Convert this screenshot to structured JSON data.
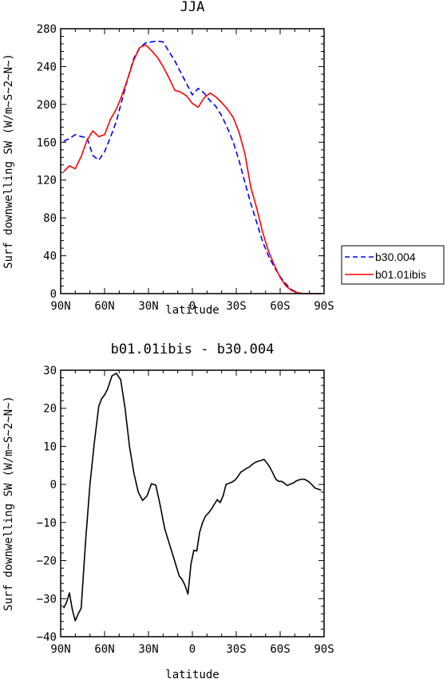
{
  "chart_data": [
    {
      "type": "line",
      "title": "JJA",
      "xlabel": "latitude",
      "ylabel": "Surf downwelling SW (W/m~S~2~N~)",
      "x_reversed": true,
      "xlim": [
        90,
        -90
      ],
      "ylim": [
        0,
        280
      ],
      "x_ticks": [
        90,
        60,
        30,
        0,
        -30,
        -60,
        -90
      ],
      "x_tick_labels": [
        "90N",
        "60N",
        "30N",
        "0",
        "30S",
        "60S",
        "90S"
      ],
      "y_ticks": [
        0,
        40,
        80,
        120,
        160,
        200,
        240,
        280
      ],
      "y_tick_labels": [
        "0",
        "40",
        "80",
        "120",
        "160",
        "200",
        "240",
        "280"
      ],
      "legend": {
        "placement": "right",
        "entries": [
          "b30.004",
          "b01.01ibis"
        ]
      },
      "series": [
        {
          "name": "b30.004",
          "color": "#0000ff",
          "dash": "dashed",
          "x": [
            88,
            84,
            80,
            76,
            72,
            68,
            64,
            60,
            56,
            52,
            48,
            44,
            40,
            36,
            32,
            28,
            24,
            20,
            16,
            12,
            8,
            4,
            0,
            -4,
            -8,
            -12,
            -16,
            -20,
            -24,
            -28,
            -32,
            -36,
            -40,
            -44,
            -48,
            -52,
            -56,
            -60,
            -64,
            -68,
            -72,
            -76,
            -80,
            -84,
            -88
          ],
          "y": [
            161,
            164,
            168,
            166,
            165,
            146,
            141,
            150,
            165,
            182,
            205,
            228,
            249,
            260,
            265,
            266,
            267,
            266,
            256,
            246,
            234,
            222,
            210,
            217,
            212,
            204,
            198,
            188,
            175,
            160,
            140,
            117,
            95,
            75,
            55,
            40,
            28,
            18,
            10,
            4,
            1,
            0,
            0,
            0,
            0
          ]
        },
        {
          "name": "b01.01ibis",
          "color": "#ff0000",
          "dash": "solid",
          "x": [
            88,
            84,
            80,
            76,
            72,
            68,
            64,
            60,
            56,
            52,
            48,
            44,
            40,
            36,
            32,
            28,
            24,
            20,
            16,
            12,
            8,
            4,
            0,
            -4,
            -8,
            -12,
            -16,
            -20,
            -24,
            -28,
            -32,
            -36,
            -40,
            -44,
            -48,
            -52,
            -56,
            -60,
            -64,
            -68,
            -72,
            -76,
            -80,
            -84,
            -88
          ],
          "y": [
            129,
            135,
            132,
            145,
            162,
            172,
            166,
            168,
            184,
            195,
            210,
            228,
            247,
            260,
            263,
            257,
            250,
            240,
            228,
            215,
            213,
            209,
            201,
            197,
            207,
            212,
            208,
            202,
            195,
            186,
            170,
            147,
            112,
            90,
            65,
            45,
            30,
            17,
            8,
            3,
            1,
            0,
            0,
            0,
            0
          ]
        }
      ]
    },
    {
      "type": "line",
      "title": "b01.01ibis - b30.004",
      "xlabel": "latitude",
      "ylabel": "Surf downwelling SW (W/m~S~2~N~)",
      "x_reversed": true,
      "xlim": [
        90,
        -90
      ],
      "ylim": [
        -40,
        30
      ],
      "x_ticks": [
        90,
        60,
        30,
        0,
        -30,
        -60,
        -90
      ],
      "x_tick_labels": [
        "90N",
        "60N",
        "30N",
        "0",
        "30S",
        "60S",
        "90S"
      ],
      "y_ticks": [
        -40,
        -30,
        -20,
        -10,
        0,
        10,
        20,
        30
      ],
      "y_tick_labels": [
        "−40",
        "−30",
        "−20",
        "−10",
        "0",
        "10",
        "20",
        "30"
      ],
      "series": [
        {
          "color": "#000000",
          "dash": "solid",
          "x": [
            88,
            86,
            84,
            82,
            80,
            78,
            76,
            73,
            70,
            67,
            64,
            62,
            60,
            58,
            55,
            52,
            49,
            46,
            43,
            40,
            37,
            34,
            31,
            28,
            25,
            22,
            19,
            17,
            15,
            13,
            11,
            9,
            7,
            5,
            3,
            1,
            -1,
            -3,
            -5,
            -7,
            -9,
            -11,
            -13,
            -15,
            -17,
            -19,
            -21,
            -23,
            -25,
            -27,
            -29,
            -31,
            -33,
            -35,
            -37,
            -39,
            -41,
            -43,
            -45,
            -47,
            -49,
            -51,
            -53,
            -55,
            -57,
            -59,
            -61,
            -63,
            -65,
            -67,
            -69,
            -71,
            -73,
            -75,
            -77,
            -80,
            -84,
            -88
          ],
          "y": [
            -32.5,
            -31,
            -28.5,
            -33,
            -35.8,
            -34,
            -32.5,
            -15,
            0,
            11,
            20.5,
            22.5,
            23.5,
            25,
            28.5,
            29.2,
            27.5,
            20,
            10,
            3,
            -2,
            -4.2,
            -3,
            0.2,
            -0.2,
            -5.5,
            -11.5,
            -14,
            -16.5,
            -19,
            -21.5,
            -24,
            -25,
            -26.5,
            -28.8,
            -21,
            -17.3,
            -17.5,
            -12.5,
            -10,
            -8.3,
            -7.5,
            -6.5,
            -5.2,
            -4,
            -4.8,
            -3,
            0,
            0.3,
            0.6,
            1.1,
            2,
            3.2,
            3.7,
            4.2,
            4.6,
            5.3,
            5.8,
            6.1,
            6.3,
            6.6,
            5.6,
            4.5,
            3,
            1.4,
            0.8,
            0.8,
            0.3,
            -0.3,
            0.1,
            0.4,
            0.9,
            1.2,
            1.4,
            1.3,
            0.6,
            -1,
            -1.5
          ]
        }
      ]
    }
  ]
}
